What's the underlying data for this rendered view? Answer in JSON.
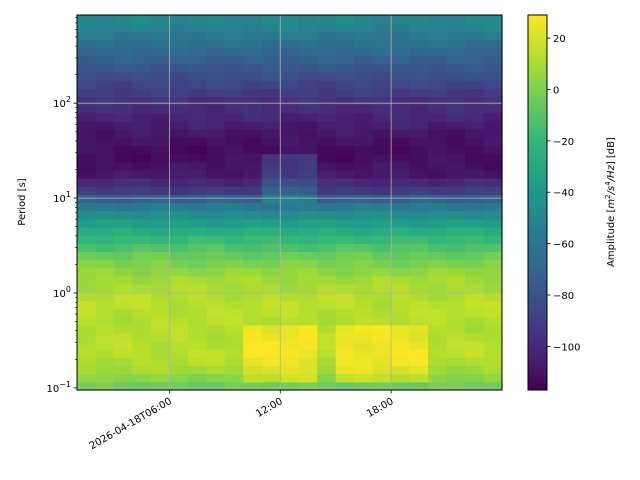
{
  "chart_data": {
    "type": "heatmap",
    "title": "",
    "xlabel": "",
    "ylabel": "Period [s]",
    "y_scale": "log",
    "y_range": [
      0.095,
      850
    ],
    "x_range": [
      "2026-04-18T01:00:00",
      "2026-04-19T00:00:00"
    ],
    "x_ticks": [
      {
        "t": "2026-04-18T06:00:00",
        "label": "2026-04-18T06:00"
      },
      {
        "t": "2026-04-18T12:00:00",
        "label": "12:00"
      },
      {
        "t": "2026-04-18T18:00:00",
        "label": "18:00"
      }
    ],
    "y_ticks": [
      {
        "value": 0.1,
        "label": "10",
        "exp": "−1"
      },
      {
        "value": 1,
        "label": "10",
        "exp": "0"
      },
      {
        "value": 10,
        "label": "10",
        "exp": "1"
      },
      {
        "value": 100,
        "label": "10",
        "exp": "2"
      }
    ],
    "grid": true,
    "colormap": "viridis",
    "colorbar": {
      "label": "Amplitude [m²/s⁴/Hz] [dB]",
      "label_main": "Amplitude [",
      "label_m": "m",
      "label_m_exp": "2",
      "label_s": "/s",
      "label_s_exp": "4",
      "label_hz": "/Hz",
      "label_end": "] [dB]",
      "range": [
        -117,
        29
      ],
      "ticks": [
        {
          "value": 20,
          "label": "20"
        },
        {
          "value": 0,
          "label": "0"
        },
        {
          "value": -20,
          "label": "−20"
        },
        {
          "value": -40,
          "label": "−40"
        },
        {
          "value": -60,
          "label": "−60"
        },
        {
          "value": -80,
          "label": "−80"
        },
        {
          "value": -100,
          "label": "−100"
        }
      ]
    },
    "time_columns": 23,
    "period_profile": [
      {
        "period": 700,
        "db": -50
      },
      {
        "period": 400,
        "db": -65
      },
      {
        "period": 200,
        "db": -82
      },
      {
        "period": 100,
        "db": -97
      },
      {
        "period": 50,
        "db": -108
      },
      {
        "period": 30,
        "db": -113
      },
      {
        "period": 18,
        "db": -108
      },
      {
        "period": 12,
        "db": -92
      },
      {
        "period": 9,
        "db": -62
      },
      {
        "period": 6,
        "db": -40
      },
      {
        "period": 4,
        "db": -22
      },
      {
        "period": 2.5,
        "db": -5
      },
      {
        "period": 1.5,
        "db": 8
      },
      {
        "period": 0.8,
        "db": 14
      },
      {
        "period": 0.4,
        "db": 12
      },
      {
        "period": 0.22,
        "db": 14
      },
      {
        "period": 0.15,
        "db": 8
      },
      {
        "period": 0.1,
        "db": -5
      }
    ],
    "time_anomalies": [
      {
        "from": "2026-04-18T10:00:00",
        "to": "2026-04-18T14:00:00",
        "period_min": 0.12,
        "period_max": 0.45,
        "db_add": 14
      },
      {
        "from": "2026-04-18T15:00:00",
        "to": "2026-04-18T20:00:00",
        "period_min": 0.12,
        "period_max": 0.45,
        "db_add": 13
      },
      {
        "from": "2026-04-18T11:00:00",
        "to": "2026-04-18T13:30:00",
        "period_min": 9,
        "period_max": 30,
        "db_add": 18
      }
    ]
  }
}
